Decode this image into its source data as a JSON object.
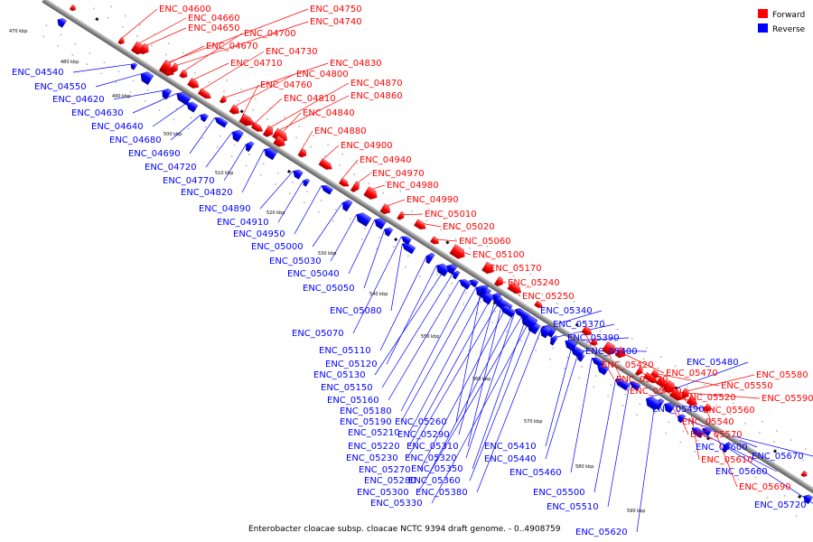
{
  "legend": {
    "forward": {
      "label": "Forward",
      "color": "#ff0000"
    },
    "reverse": {
      "label": "Reverse",
      "color": "#0000ff"
    }
  },
  "caption": "Enterobacter cloacae subsp. cloacae NCTC 9394 draft genome. - 0..4908759",
  "ticks": [
    "470 kbp",
    "480 kbp",
    "490 kbp",
    "500 kbp",
    "510 kbp",
    "520 kbp",
    "530 kbp",
    "540 kbp",
    "550 kbp",
    "560 kbp",
    "570 kbp",
    "580 kbp",
    "590 kbp"
  ],
  "forward_genes": [
    "ENC_04600",
    "ENC_04660",
    "ENC_04650",
    "ENC_04670",
    "ENC_04710",
    "ENC_04700",
    "ENC_04730",
    "ENC_04750",
    "ENC_04740",
    "ENC_04760",
    "ENC_04800",
    "ENC_04830",
    "ENC_04810",
    "ENC_04870",
    "ENC_04860",
    "ENC_04840",
    "ENC_04880",
    "ENC_04900",
    "ENC_04940",
    "ENC_04970",
    "ENC_04980",
    "ENC_04990",
    "ENC_05010",
    "ENC_05020",
    "ENC_05060",
    "ENC_05100",
    "ENC_05170",
    "ENC_05240",
    "ENC_05250",
    "ENC_05420",
    "ENC_05430",
    "ENC_05450",
    "ENC_05470",
    "ENC_05520",
    "ENC_05540",
    "ENC_05550",
    "ENC_05560",
    "ENC_05570",
    "ENC_05580",
    "ENC_05590",
    "ENC_05610",
    "ENC_05690"
  ],
  "reverse_genes": [
    "ENC_04540",
    "ENC_04550",
    "ENC_04620",
    "ENC_04630",
    "ENC_04640",
    "ENC_04680",
    "ENC_04690",
    "ENC_04720",
    "ENC_04770",
    "ENC_04820",
    "ENC_04890",
    "ENC_04910",
    "ENC_04950",
    "ENC_05000",
    "ENC_05030",
    "ENC_05040",
    "ENC_05050",
    "ENC_05080",
    "ENC_05070",
    "ENC_05110",
    "ENC_05120",
    "ENC_05130",
    "ENC_05150",
    "ENC_05160",
    "ENC_05180",
    "ENC_05190",
    "ENC_05210",
    "ENC_05220",
    "ENC_05230",
    "ENC_05270",
    "ENC_05280",
    "ENC_05300",
    "ENC_05330",
    "ENC_05260",
    "ENC_05290",
    "ENC_05310",
    "ENC_05320",
    "ENC_05350",
    "ENC_05360",
    "ENC_05380",
    "ENC_05410",
    "ENC_05440",
    "ENC_05460",
    "ENC_05340",
    "ENC_05370",
    "ENC_05390",
    "ENC_05400",
    "ENC_05500",
    "ENC_05510",
    "ENC_05620",
    "ENC_05480",
    "ENC_05490",
    "ENC_05600",
    "ENC_05660",
    "ENC_05670",
    "ENC_05720"
  ]
}
